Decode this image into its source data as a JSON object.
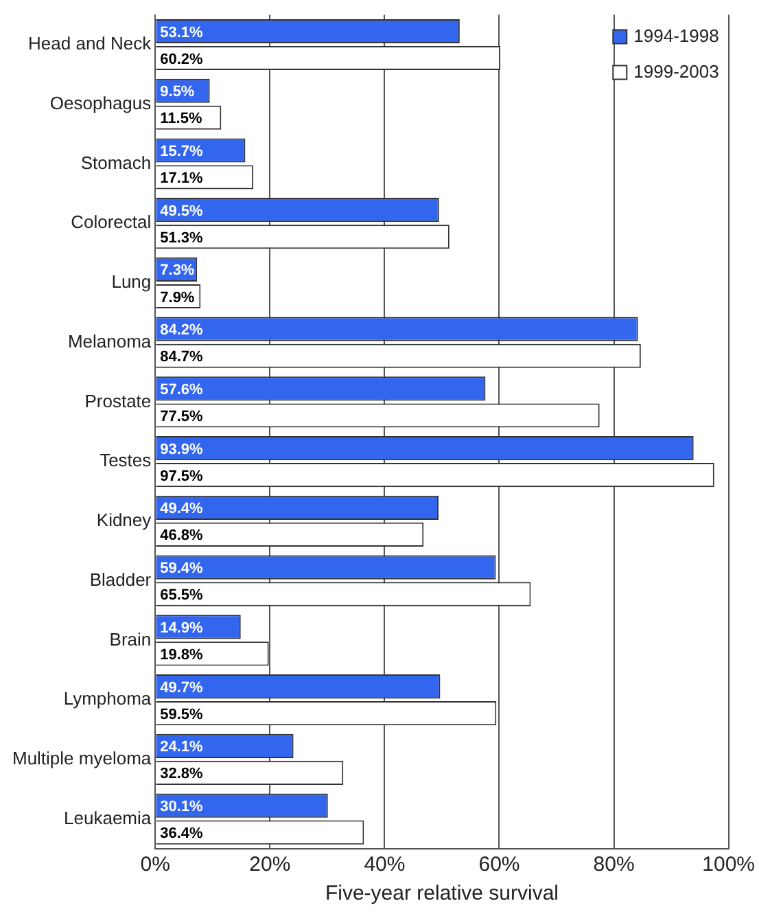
{
  "chart_data": {
    "type": "bar",
    "orientation": "horizontal",
    "xlabel": "Five-year relative survival",
    "categories": [
      "Head and Neck",
      "Oesophagus",
      "Stomach",
      "Colorectal",
      "Lung",
      "Melanoma",
      "Prostate",
      "Testes",
      "Kidney",
      "Bladder",
      "Brain",
      "Lymphoma",
      "Multiple myeloma",
      "Leukaemia"
    ],
    "series": [
      {
        "name": "1994-1998",
        "color": "#3366ee",
        "values": [
          53.1,
          9.5,
          15.7,
          49.5,
          7.3,
          84.2,
          57.6,
          93.9,
          49.4,
          59.4,
          14.9,
          49.7,
          24.1,
          30.1
        ],
        "value_labels": [
          "53.1%",
          "9.5%",
          "15.7%",
          "49.5%",
          "7.3%",
          "84.2%",
          "57.6%",
          "93.9%",
          "49.4%",
          "59.4%",
          "14.9%",
          "49.7%",
          "24.1%",
          "30.1%"
        ]
      },
      {
        "name": "1999-2003",
        "color": "#ffffff",
        "values": [
          60.2,
          11.5,
          17.1,
          51.3,
          7.9,
          84.7,
          77.5,
          97.5,
          46.8,
          65.5,
          19.8,
          59.5,
          32.8,
          36.4
        ],
        "value_labels": [
          "60.2%",
          "11.5%",
          "17.1%",
          "51.3%",
          "7.9%",
          "84.7%",
          "77.5%",
          "97.5%",
          "46.8%",
          "65.5%",
          "19.8%",
          "59.5%",
          "32.8%",
          "36.4%"
        ]
      }
    ],
    "xlim": [
      0,
      100
    ],
    "xticks": [
      {
        "value": 0,
        "label": "0%"
      },
      {
        "value": 20,
        "label": "20%"
      },
      {
        "value": 40,
        "label": "40%"
      },
      {
        "value": 60,
        "label": "60%"
      },
      {
        "value": 80,
        "label": "80%"
      },
      {
        "value": 100,
        "label": "100%"
      }
    ],
    "grid": "x",
    "legend": "top right"
  }
}
